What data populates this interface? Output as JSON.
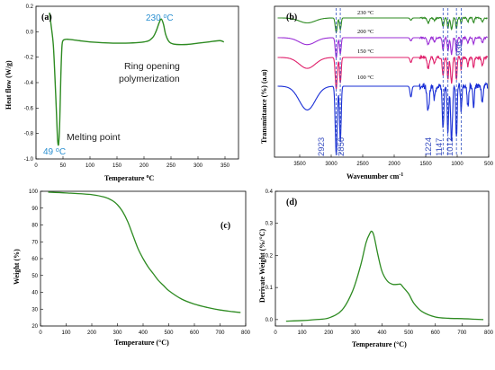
{
  "colors": {
    "green": "#2e8b22",
    "blue_text": "#2a8fd0",
    "ftir_100": "#1a2fd6",
    "ftir_150": "#e0206b",
    "ftir_200": "#9b2fd6",
    "ftir_230": "#2e8b22",
    "dash": "#3050c0"
  },
  "chart_data": [
    {
      "panel": "(a)",
      "type": "line",
      "xlabel": "Temperature oC",
      "xlabel_parts": {
        "main": "Temperature ",
        "sup": "o",
        "tail": "C"
      },
      "ylabel": "Heat flow (W/g)",
      "xlim": [
        0,
        375
      ],
      "ylim": [
        -1.0,
        0.2
      ],
      "xticks": [
        0,
        50,
        100,
        150,
        200,
        250,
        300,
        350
      ],
      "yticks": [
        -1.0,
        -0.8,
        -0.6,
        -0.4,
        -0.2,
        0.0,
        0.2
      ],
      "ytick_labels": [
        "-1.0",
        "-0.8",
        "-0.6",
        "-0.4",
        "-0.2",
        "0.0",
        "0.2"
      ],
      "series": [
        {
          "x": [
            25,
            28,
            32,
            35,
            38,
            40,
            42,
            44,
            46,
            48,
            50,
            55,
            60,
            80,
            100,
            150,
            200,
            215,
            222,
            228,
            232,
            236,
            240,
            245,
            250,
            260,
            280,
            300,
            320,
            340,
            348
          ],
          "y": [
            0.15,
            0.05,
            -0.1,
            -0.35,
            -0.65,
            -0.85,
            -0.88,
            -0.7,
            -0.35,
            -0.12,
            -0.07,
            -0.06,
            -0.06,
            -0.07,
            -0.08,
            -0.09,
            -0.08,
            -0.05,
            0.0,
            0.07,
            0.1,
            0.06,
            -0.02,
            -0.07,
            -0.09,
            -0.1,
            -0.1,
            -0.09,
            -0.08,
            -0.07,
            -0.08
          ]
        }
      ],
      "annotations": {
        "melt_temp": "49 ",
        "melt_unit": "C",
        "melt_label": "Melting point",
        "poly_temp": "230 ",
        "poly_unit": "C",
        "poly_label_1": "Ring opening",
        "poly_label_2": "polymerization",
        "deg": "o"
      }
    },
    {
      "panel": "(b)",
      "type": "line",
      "xlabel": "Wavenumber cm-1",
      "xlabel_parts": {
        "main": "Wavenumber cm",
        "sup": "-1"
      },
      "ylabel": "Transmittance (%) (a.u)",
      "xlim": [
        3900,
        500
      ],
      "xticks": [
        3500,
        3000,
        2500,
        2000,
        1500,
        1000,
        500
      ],
      "series_labels": [
        "230 °C",
        "200 °C",
        "150 °C",
        "100 °C"
      ],
      "peak_labels": [
        "2923",
        "2856",
        "1224",
        "1147",
        "1012",
        "936"
      ]
    },
    {
      "panel": "(c)",
      "type": "line",
      "xlabel": "Temperature (°C)",
      "ylabel": "Weight (%)",
      "xlim": [
        0,
        800
      ],
      "ylim": [
        20,
        100
      ],
      "xticks": [
        0,
        100,
        200,
        300,
        400,
        500,
        600,
        700,
        800
      ],
      "yticks": [
        20,
        30,
        40,
        50,
        60,
        70,
        80,
        90,
        100
      ],
      "series": [
        {
          "x": [
            30,
            100,
            200,
            250,
            280,
            300,
            320,
            340,
            360,
            380,
            400,
            420,
            440,
            460,
            480,
            500,
            550,
            600,
            650,
            700,
            750,
            780
          ],
          "y": [
            99.5,
            99.0,
            98.0,
            96.5,
            94.5,
            92.0,
            88.0,
            82.0,
            74.0,
            66.0,
            60.0,
            55.0,
            51.0,
            47.0,
            44.0,
            41.0,
            36.0,
            33.0,
            31.0,
            29.5,
            28.5,
            28.0
          ]
        }
      ]
    },
    {
      "panel": "(d)",
      "type": "line",
      "xlabel": "Temperature (°C)",
      "ylabel": "Derivate Weight (%/°C)",
      "xlim": [
        0,
        800
      ],
      "ylim": [
        -0.02,
        0.4
      ],
      "xticks": [
        0,
        100,
        200,
        300,
        400,
        500,
        600,
        700,
        800
      ],
      "yticks": [
        0.0,
        0.1,
        0.2,
        0.3,
        0.4
      ],
      "ytick_labels": [
        "0.0",
        "0.1",
        "0.2",
        "0.3",
        "0.4"
      ],
      "series": [
        {
          "x": [
            40,
            100,
            150,
            200,
            250,
            290,
            320,
            340,
            355,
            362,
            370,
            385,
            400,
            420,
            440,
            460,
            470,
            480,
            500,
            520,
            550,
            600,
            650,
            700,
            750,
            780
          ],
          "y": [
            -0.005,
            -0.003,
            0.0,
            0.005,
            0.03,
            0.09,
            0.17,
            0.24,
            0.27,
            0.275,
            0.26,
            0.2,
            0.15,
            0.12,
            0.11,
            0.11,
            0.11,
            0.1,
            0.08,
            0.05,
            0.025,
            0.008,
            0.004,
            0.003,
            0.001,
            0.0
          ]
        }
      ]
    }
  ]
}
